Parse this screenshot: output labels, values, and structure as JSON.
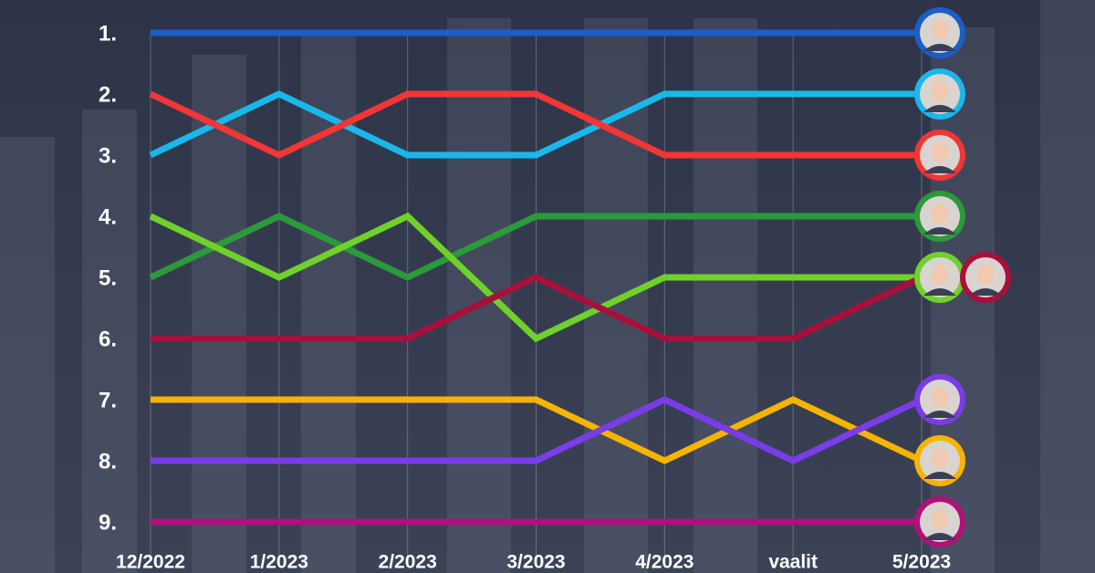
{
  "chart_data": {
    "type": "line",
    "categories": [
      "12/2022",
      "1/2023",
      "2/2023",
      "3/2023",
      "4/2023",
      "vaalit",
      "5/2023"
    ],
    "ylim": [
      9,
      1
    ],
    "yticks": [
      {
        "value": 1,
        "label": "1."
      },
      {
        "value": 2,
        "label": "2."
      },
      {
        "value": 3,
        "label": "3."
      },
      {
        "value": 4,
        "label": "4."
      },
      {
        "value": 5,
        "label": "5."
      },
      {
        "value": 6,
        "label": "6."
      },
      {
        "value": 7,
        "label": "7."
      },
      {
        "value": 8,
        "label": "8."
      },
      {
        "value": 9,
        "label": "9."
      }
    ],
    "grid": true,
    "series": [
      {
        "color": "#1a5fc8",
        "values": [
          1,
          1,
          1,
          1,
          1,
          1,
          1
        ]
      },
      {
        "color": "#1ab8ea",
        "values": [
          3,
          2,
          3,
          3,
          2,
          2,
          2
        ]
      },
      {
        "color": "#f23535",
        "values": [
          2,
          3,
          2,
          2,
          3,
          3,
          3
        ]
      },
      {
        "color": "#2a9a3a",
        "values": [
          5,
          4,
          5,
          4,
          4,
          4,
          4
        ]
      },
      {
        "color": "#6fd12a",
        "values": [
          4,
          5,
          4,
          6,
          5,
          5,
          5
        ]
      },
      {
        "color": "#a8103c",
        "values": [
          6,
          6,
          6,
          5,
          6,
          6,
          5
        ]
      },
      {
        "color": "#f5b400",
        "values": [
          7,
          7,
          7,
          7,
          8,
          7,
          8
        ]
      },
      {
        "color": "#7a3ce8",
        "values": [
          8,
          8,
          8,
          8,
          7,
          8,
          7
        ]
      },
      {
        "color": "#b0107a",
        "values": [
          9,
          9,
          9,
          9,
          9,
          9,
          9
        ]
      }
    ]
  }
}
